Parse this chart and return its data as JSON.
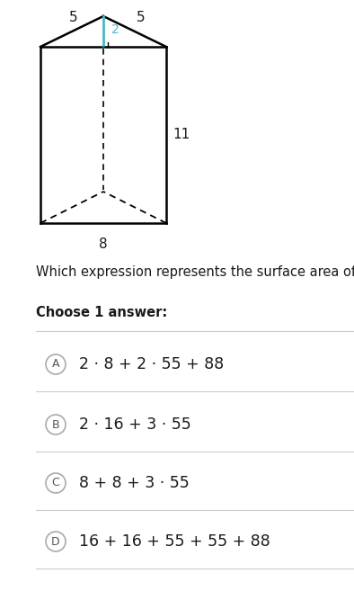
{
  "title": "Which expression represents the surface area of the prism?",
  "choose_label": "Choose 1 answer:",
  "options": [
    {
      "letter": "A",
      "text": "2 \\cdot 8 + 2 \\cdot 55 + 88"
    },
    {
      "letter": "B",
      "text": "2 \\cdot 16 + 3 \\cdot 55"
    },
    {
      "letter": "C",
      "text": "8 + 8 + 3 \\cdot 55"
    },
    {
      "letter": "D",
      "text": "16 + 16 + 55 + 55 + 88"
    }
  ],
  "option_texts_render": [
    "2 · 8 + 2 · 55 + 88",
    "2 · 16 + 3 · 55",
    "8 + 8 + 3 · 55",
    "16 + 16 + 55 + 55 + 88"
  ],
  "prism": {
    "label_5_left": "5",
    "label_5_right": "5",
    "label_2": "2",
    "label_8": "8",
    "label_11": "11"
  },
  "bg_color": "#ffffff",
  "text_color": "#1a1a1a",
  "accent_color": "#4ab8c4",
  "circle_edge_color": "#aaaaaa",
  "circle_letter_color": "#555555",
  "line_color": "#cccccc",
  "font_size_title": 10.5,
  "font_size_choose": 10.5,
  "font_size_options": 12.5,
  "font_size_labels": 11,
  "font_size_circle_letter": 9
}
